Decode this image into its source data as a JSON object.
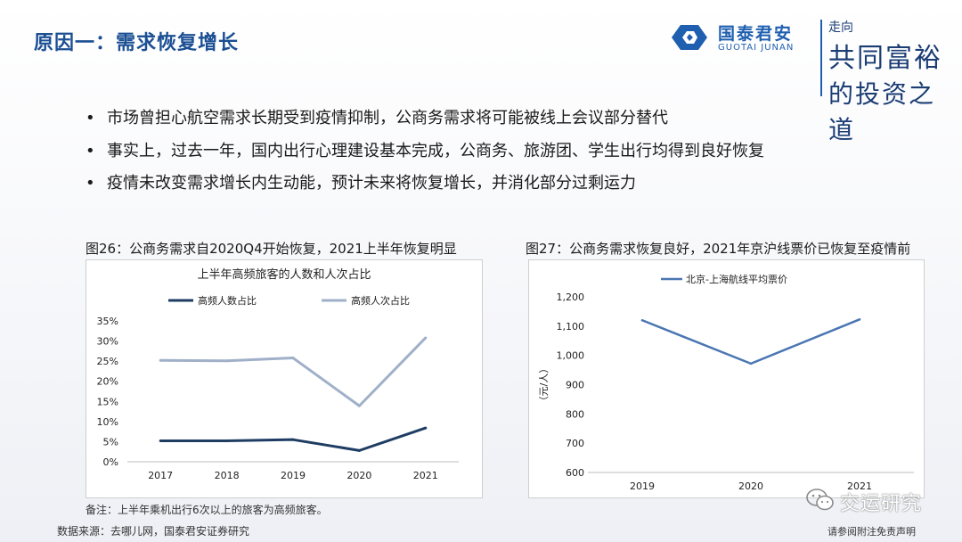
{
  "slide": {
    "title": "原因一：需求恢复增长",
    "brand_cn": "国泰君安",
    "brand_en": "GUOTAI JUNAN",
    "slogan_top": "走向",
    "slogan_mid": "共同富裕",
    "slogan_bot": "的投资之道",
    "bullet_glyph": "•",
    "bullets": [
      "市场曾担心航空需求长期受到疫情抑制，公商务需求将可能被线上会议部分替代",
      "事实上，过去一年，国内出行心理建设基本完成，公商务、旅游团、学生出行均得到良好恢复",
      "疫情未改变需求增长内生动能，预计未来将恢复增长，并消化部分过剩运力"
    ],
    "fig26_caption": "图26：公商务需求自2020Q4开始恢复，2021上半年恢复明显",
    "fig27_caption": "图27：公商务需求恢复良好，2021年京沪线票价已恢复至疫情前",
    "note": "备注：上半年乘机出行6次以上的旅客为高频旅客。",
    "source": "数据来源：去哪儿网，国泰君安证券研究",
    "disclaimer": "请参阅附注免责声明",
    "watermark": "交运研究"
  },
  "colors": {
    "title": "#1b4f93",
    "brand": "#1f5fb0",
    "series_dark": "#1f3d63",
    "series_light": "#9fb0c8",
    "line_price": "#4a76b3"
  },
  "chart_data": [
    {
      "type": "line",
      "title": "上半年高频旅客的人数和人次占比",
      "categories": [
        "2017",
        "2018",
        "2019",
        "2020",
        "2021"
      ],
      "series": [
        {
          "name": "高频人数占比",
          "values": [
            5.2,
            5.2,
            5.5,
            2.8,
            8.4
          ]
        },
        {
          "name": "高频人次占比",
          "values": [
            25.2,
            25.1,
            25.8,
            13.9,
            30.8
          ]
        }
      ],
      "ylim": [
        0,
        35
      ],
      "yticks": [
        "0%",
        "5%",
        "10%",
        "15%",
        "20%",
        "25%",
        "30%",
        "35%"
      ],
      "legend": "top",
      "grid": false
    },
    {
      "type": "line",
      "title": "",
      "categories": [
        "2019",
        "2020",
        "2021"
      ],
      "series": [
        {
          "name": "北京-上海航线平均票价",
          "values": [
            1120,
            972,
            1123
          ]
        }
      ],
      "ylabel": "（元/人）",
      "ylim": [
        600,
        1200
      ],
      "yticks": [
        "600",
        "700",
        "800",
        "900",
        "1,000",
        "1,100",
        "1,200"
      ],
      "legend": "top",
      "grid": false
    }
  ]
}
